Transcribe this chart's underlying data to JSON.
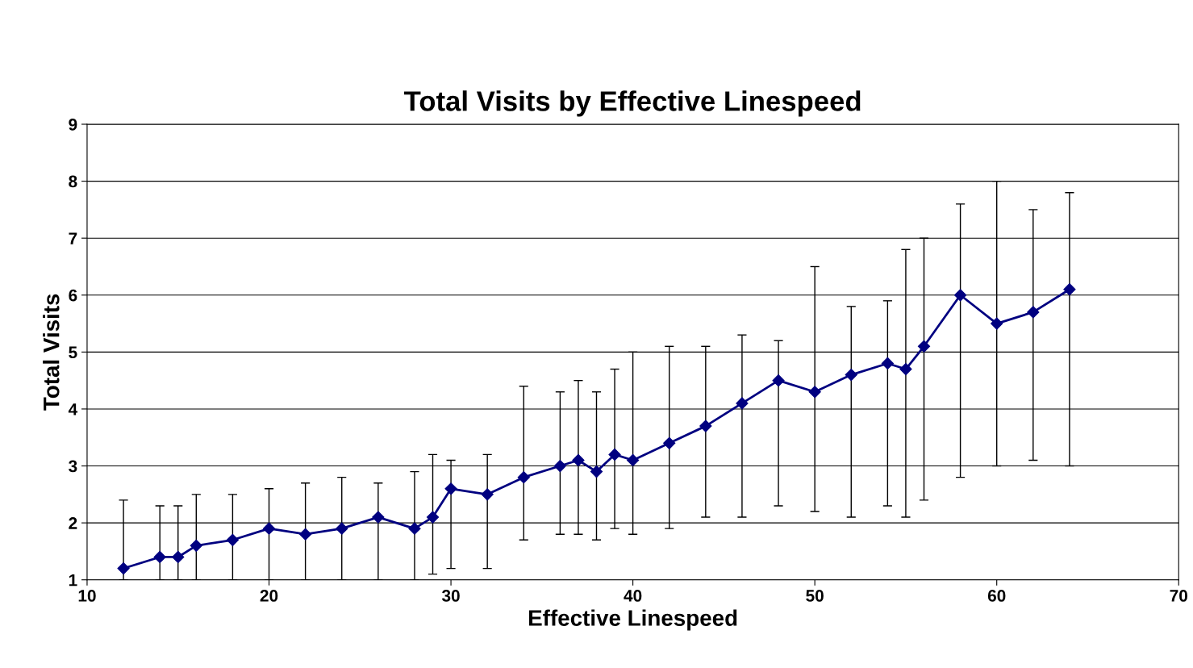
{
  "chart_data": {
    "type": "line",
    "title": "Total Visits by Effective Linespeed",
    "xlabel": "Effective Linespeed",
    "ylabel": "Total Visits",
    "x": [
      12,
      14,
      15,
      16,
      18,
      20,
      22,
      24,
      26,
      28,
      29,
      30,
      32,
      34,
      36,
      37,
      38,
      39,
      40,
      42,
      44,
      46,
      48,
      50,
      52,
      54,
      55,
      56,
      58,
      60,
      62,
      64
    ],
    "series": [
      {
        "color": "#000080",
        "values": [
          1.2,
          1.4,
          1.4,
          1.6,
          1.7,
          1.9,
          1.8,
          1.9,
          2.1,
          1.9,
          2.1,
          2.6,
          2.5,
          2.8,
          3.0,
          3.1,
          2.9,
          3.2,
          3.1,
          3.4,
          3.7,
          4.1,
          4.5,
          4.3,
          4.6,
          4.8,
          4.7,
          5.1,
          6.0,
          5.5,
          5.7,
          6.1
        ],
        "errors": [
          [
            1,
            2.4
          ],
          [
            1,
            2.3
          ],
          [
            1,
            2.3
          ],
          [
            1,
            2.5
          ],
          [
            1,
            2.5
          ],
          [
            1,
            2.6
          ],
          [
            1,
            2.7
          ],
          [
            1,
            2.8
          ],
          [
            1,
            2.7
          ],
          [
            1,
            2.9
          ],
          [
            1.1,
            3.2
          ],
          [
            1.2,
            3.1
          ],
          [
            1.2,
            3.2
          ],
          [
            1.7,
            4.4
          ],
          [
            1.8,
            4.3
          ],
          [
            1.8,
            4.5
          ],
          [
            1.7,
            4.3
          ],
          [
            1.9,
            4.7
          ],
          [
            1.8,
            5.0
          ],
          [
            1.9,
            5.1
          ],
          [
            2.1,
            5.1
          ],
          [
            2.1,
            5.3
          ],
          [
            2.3,
            5.2
          ],
          [
            2.2,
            6.5
          ],
          [
            2.1,
            5.8
          ],
          [
            2.3,
            5.9
          ],
          [
            2.1,
            6.8
          ],
          [
            2.4,
            7.0
          ],
          [
            2.8,
            7.6
          ],
          [
            3.0,
            8.0
          ],
          [
            3.1,
            7.5
          ],
          [
            3.0,
            7.8
          ]
        ]
      }
    ],
    "xlim": [
      10,
      70
    ],
    "xticks": [
      10,
      20,
      30,
      40,
      50,
      60,
      70
    ],
    "ylim": [
      1,
      9
    ],
    "yticks": [
      1,
      2,
      3,
      4,
      5,
      6,
      7,
      8,
      9
    ],
    "grid": "y",
    "marker": "diamond",
    "line_style": "solid"
  }
}
